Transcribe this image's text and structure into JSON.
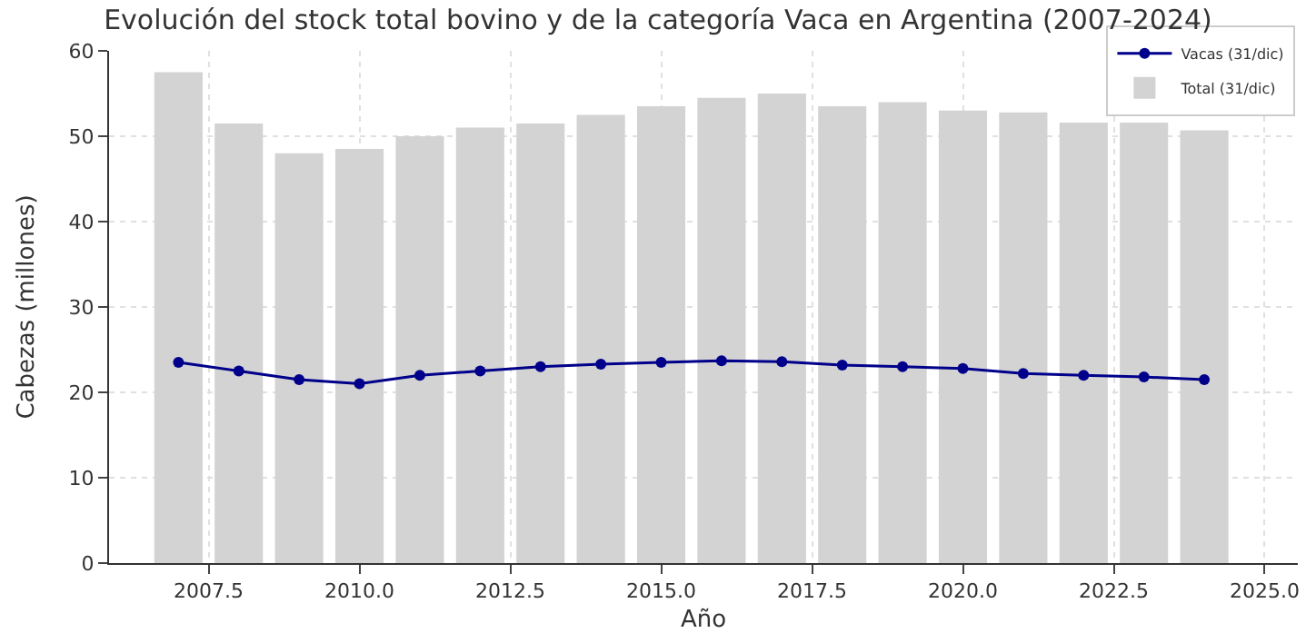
{
  "chart_data": {
    "type": "bar",
    "title": "Evolución del stock total bovino y de la categoría Vaca en Argentina (2007-2024)",
    "xlabel": "Año",
    "ylabel": "Cabezas (millones)",
    "x": [
      2007,
      2008,
      2009,
      2010,
      2011,
      2012,
      2013,
      2014,
      2015,
      2016,
      2017,
      2018,
      2019,
      2020,
      2021,
      2022,
      2023,
      2024
    ],
    "series": [
      {
        "name": "Total (31/dic)",
        "color": "#d3d3d3",
        "values": [
          57.5,
          51.5,
          48,
          48.5,
          50,
          51,
          51.5,
          52.5,
          53.5,
          54.5,
          55,
          53.5,
          54,
          53,
          52.8,
          51.6,
          51.6,
          50.7
        ]
      },
      {
        "name": "Vacas (31/dic)",
        "type": "line",
        "color": "#00008b",
        "marker": "circle",
        "values": [
          23.5,
          22.5,
          21.5,
          21,
          22,
          22.5,
          23,
          23.3,
          23.5,
          23.7,
          23.6,
          23.2,
          23,
          22.8,
          22.2,
          22,
          21.8,
          21.5
        ]
      }
    ],
    "xlim": [
      2005.85,
      2025.55
    ],
    "xticks": [
      {
        "value": 2007.5,
        "label": "2007.5"
      },
      {
        "value": 2010,
        "label": "2010.0"
      },
      {
        "value": 2012.5,
        "label": "2012.5"
      },
      {
        "value": 2015,
        "label": "2015.0"
      },
      {
        "value": 2017.5,
        "label": "2017.5"
      },
      {
        "value": 2020,
        "label": "2020.0"
      },
      {
        "value": 2022.5,
        "label": "2022.5"
      },
      {
        "value": 2025,
        "label": "2025.0"
      }
    ],
    "ylim": [
      0,
      60
    ],
    "yticks": [
      0,
      10,
      20,
      30,
      40,
      50,
      60
    ],
    "grid": true,
    "legend": "top right"
  }
}
